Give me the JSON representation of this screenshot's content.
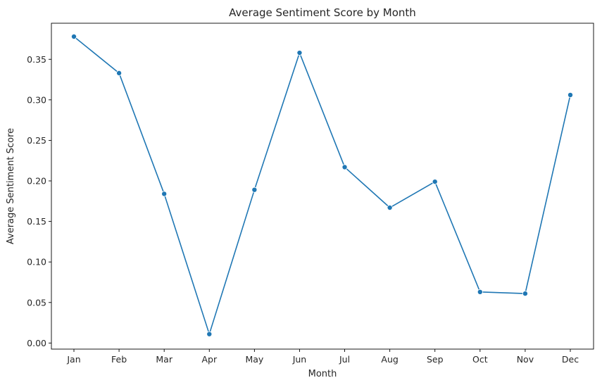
{
  "chart_data": {
    "type": "line",
    "title": "Average Sentiment Score by Month",
    "xlabel": "Month",
    "ylabel": "Average Sentiment Score",
    "categories": [
      "Jan",
      "Feb",
      "Mar",
      "Apr",
      "May",
      "Jun",
      "Jul",
      "Aug",
      "Sep",
      "Oct",
      "Nov",
      "Dec"
    ],
    "series": [
      {
        "values": [
          0.378,
          0.333,
          0.184,
          0.011,
          0.189,
          0.358,
          0.217,
          0.167,
          0.199,
          0.063,
          0.061,
          0.306
        ],
        "color": "#1f77b4",
        "marker": "circle"
      }
    ],
    "ylim": [
      -0.0075,
      0.3945
    ],
    "yticks": [
      0.0,
      0.05,
      0.1,
      0.15,
      0.2,
      0.25,
      0.3,
      0.35
    ],
    "ytick_labels": [
      "0.00",
      "0.05",
      "0.10",
      "0.15",
      "0.20",
      "0.25",
      "0.30",
      "0.35"
    ],
    "grid": false,
    "legend": "none"
  }
}
